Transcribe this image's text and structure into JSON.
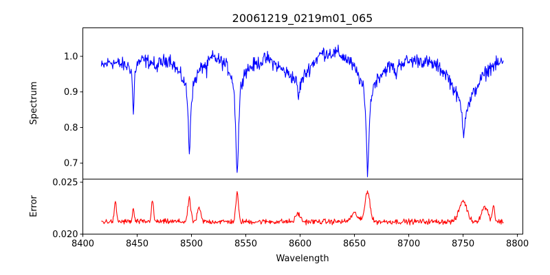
{
  "chart_data": {
    "type": "line",
    "title": "20061219_0219m01_065",
    "xlabel": "Wavelength",
    "xlim": [
      8400,
      8805
    ],
    "x_ticks": [
      8400,
      8450,
      8500,
      8550,
      8600,
      8650,
      8700,
      8750,
      8800
    ],
    "x_tick_labels": [
      "8400",
      "8450",
      "8500",
      "8550",
      "8600",
      "8650",
      "8700",
      "8750",
      "8800"
    ],
    "data_range": [
      8417,
      8787
    ],
    "panels": [
      {
        "name": "spectrum",
        "ylabel": "Spectrum",
        "ylim": [
          0.655,
          1.08
        ],
        "y_ticks": [
          0.7,
          0.8,
          0.9,
          1.0
        ],
        "y_tick_labels": [
          "0.7",
          "0.8",
          "0.9",
          "1.0"
        ],
        "color": "#0000ff",
        "continuum": [
          [
            8417,
            0.97
          ],
          [
            8425,
            0.985
          ],
          [
            8440,
            0.975
          ],
          [
            8455,
            0.99
          ],
          [
            8470,
            0.98
          ],
          [
            8480,
            0.995
          ],
          [
            8490,
            0.95
          ],
          [
            8500,
            0.93
          ],
          [
            8510,
            0.975
          ],
          [
            8520,
            1.0
          ],
          [
            8530,
            0.985
          ],
          [
            8540,
            0.96
          ],
          [
            8555,
            0.975
          ],
          [
            8570,
            0.995
          ],
          [
            8585,
            0.96
          ],
          [
            8600,
            0.93
          ],
          [
            8610,
            0.975
          ],
          [
            8620,
            1.01
          ],
          [
            8635,
            1.01
          ],
          [
            8645,
            0.99
          ],
          [
            8655,
            0.95
          ],
          [
            8665,
            0.93
          ],
          [
            8680,
            0.97
          ],
          [
            8695,
            0.985
          ],
          [
            8710,
            0.99
          ],
          [
            8725,
            0.975
          ],
          [
            8735,
            0.95
          ],
          [
            8745,
            0.89
          ],
          [
            8755,
            0.87
          ],
          [
            8765,
            0.93
          ],
          [
            8775,
            0.97
          ],
          [
            8787,
            0.985
          ]
        ],
        "absorption_lines": [
          {
            "center": 8446.5,
            "depth": 0.15,
            "width": 0.8
          },
          {
            "center": 8498.0,
            "depth": 0.2,
            "width": 1.3
          },
          {
            "center": 8542.1,
            "depth": 0.29,
            "width": 1.6
          },
          {
            "center": 8662.1,
            "depth": 0.25,
            "width": 1.7
          },
          {
            "center": 8750.5,
            "depth": 0.09,
            "width": 1.6
          },
          {
            "center": 8467.0,
            "depth": 0.03,
            "width": 0.6
          },
          {
            "center": 8514.0,
            "depth": 0.03,
            "width": 0.6
          },
          {
            "center": 8598.5,
            "depth": 0.05,
            "width": 1.0
          },
          {
            "center": 8688.0,
            "depth": 0.04,
            "width": 0.8
          }
        ],
        "noise": 0.017
      },
      {
        "name": "error",
        "ylabel": "Error",
        "ylim": [
          0.02,
          0.0253
        ],
        "y_ticks": [
          0.02,
          0.025
        ],
        "y_tick_labels": [
          "0.020",
          "0.025"
        ],
        "color": "#ff0000",
        "baseline": 0.0212,
        "features": [
          {
            "center": 8430,
            "height": 0.0018,
            "width": 1.0
          },
          {
            "center": 8446.5,
            "height": 0.0012,
            "width": 0.8
          },
          {
            "center": 8464,
            "height": 0.002,
            "width": 1.0
          },
          {
            "center": 8498,
            "height": 0.0022,
            "width": 1.3
          },
          {
            "center": 8507,
            "height": 0.0013,
            "width": 1.5
          },
          {
            "center": 8542,
            "height": 0.0027,
            "width": 1.2
          },
          {
            "center": 8598,
            "height": 0.0008,
            "width": 2.0
          },
          {
            "center": 8662,
            "height": 0.003,
            "width": 2.2
          },
          {
            "center": 8650,
            "height": 0.0008,
            "width": 3.0
          },
          {
            "center": 8750,
            "height": 0.002,
            "width": 3.5
          },
          {
            "center": 8770,
            "height": 0.0014,
            "width": 3.0
          },
          {
            "center": 8778,
            "height": 0.0016,
            "width": 1.0
          }
        ],
        "noise": 0.00022
      }
    ]
  }
}
